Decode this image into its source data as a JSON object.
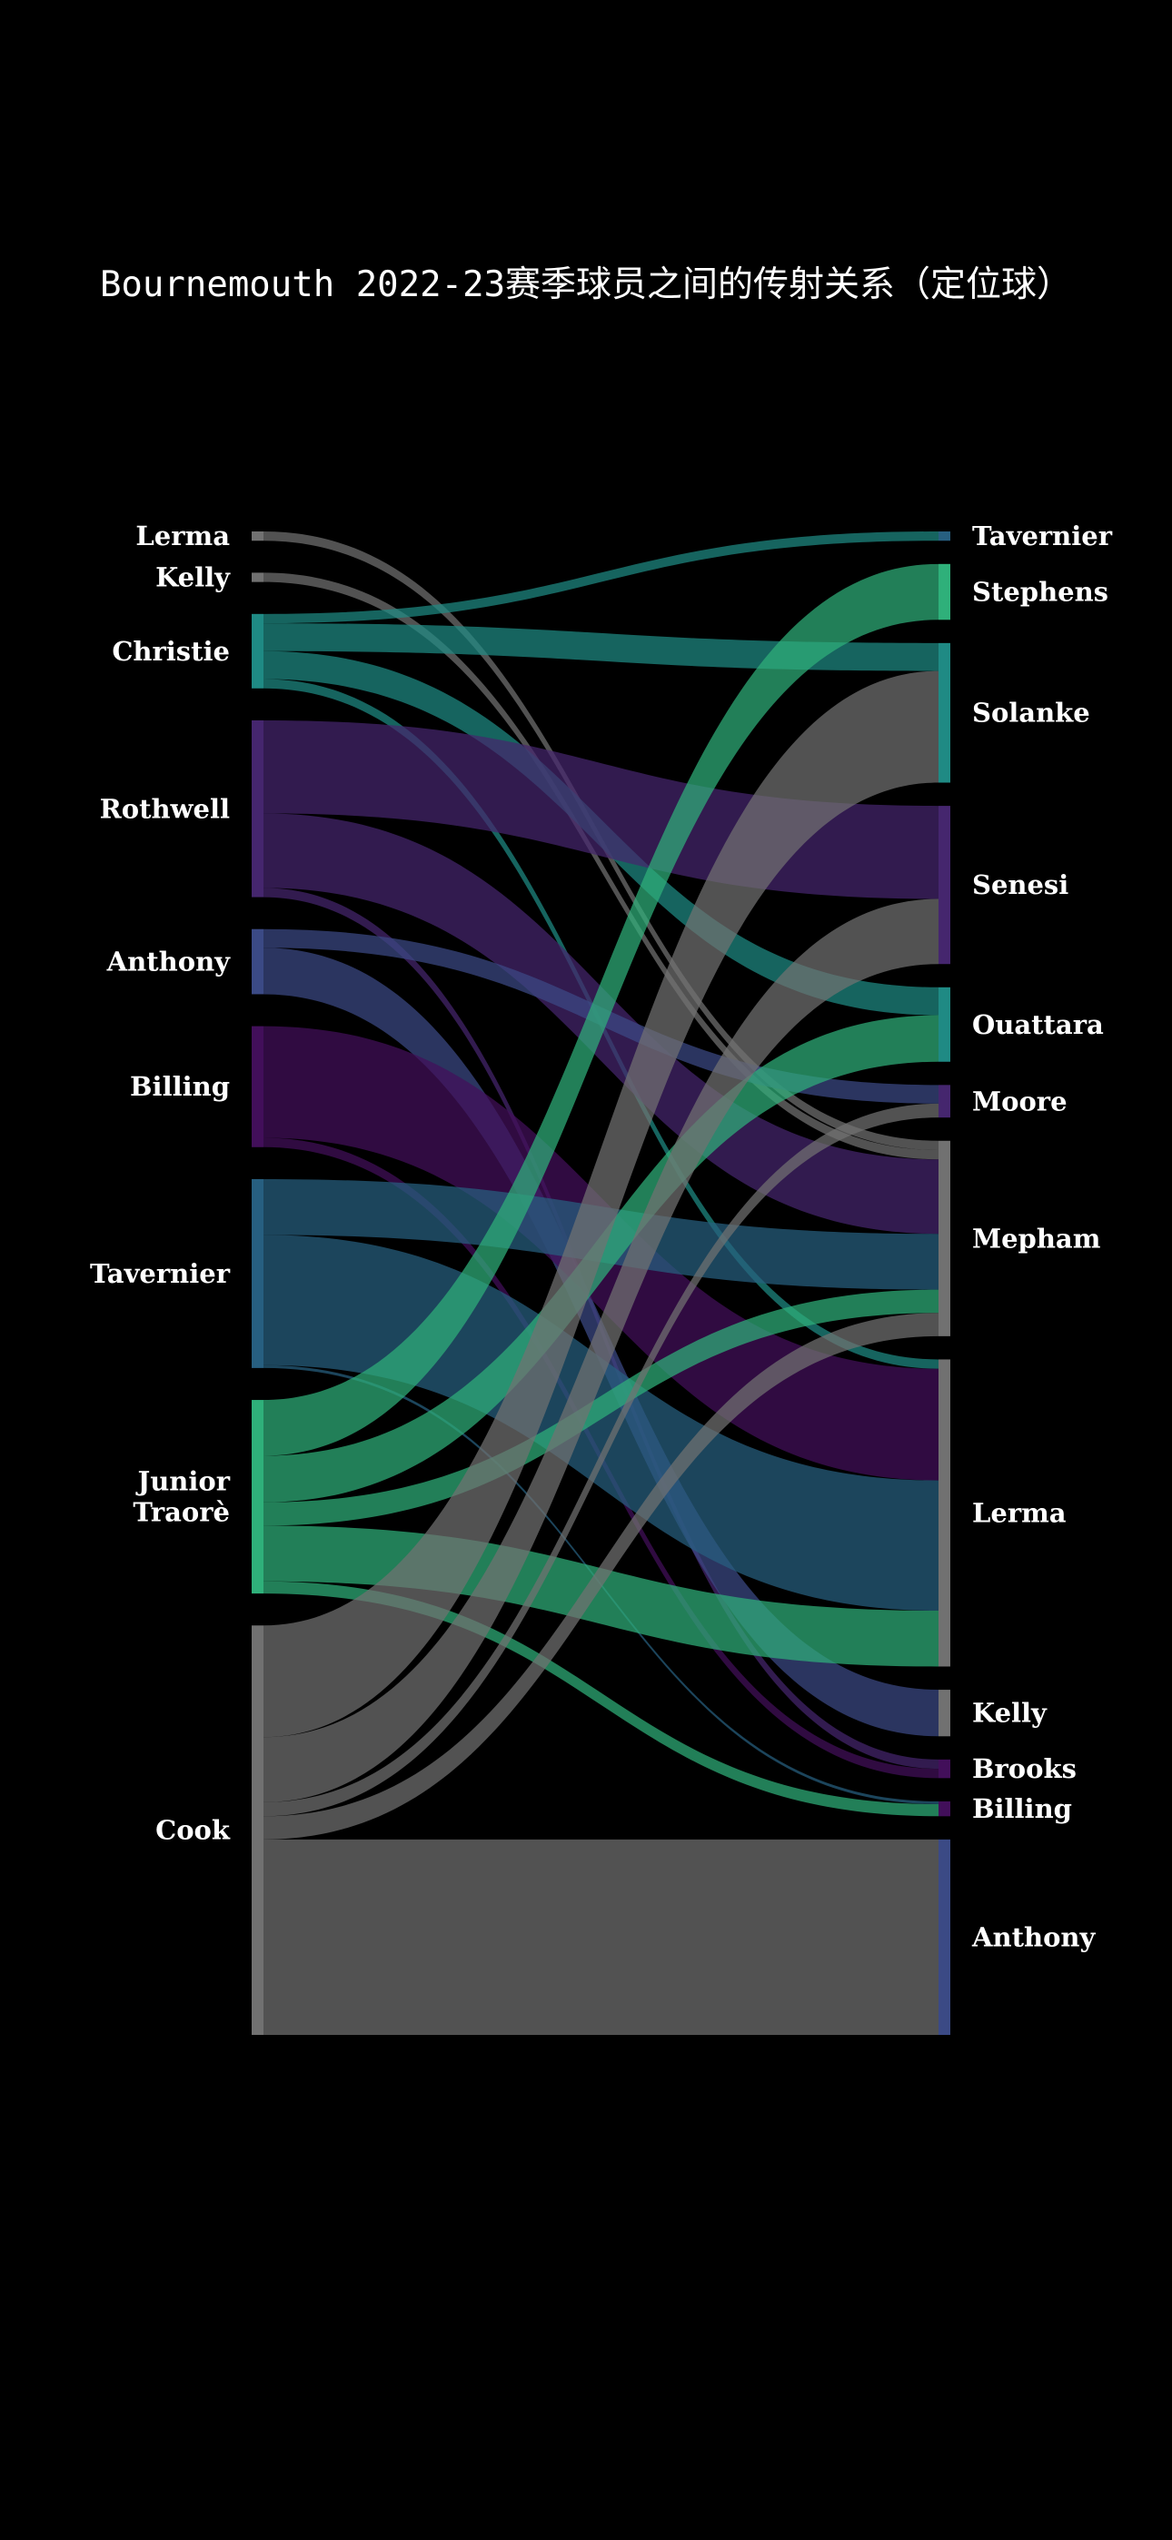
{
  "chart_data": {
    "type": "sankey",
    "title": "Bournemouth 2022-23赛季球员之间的传射关系（定位球）",
    "colors": {
      "Lerma": "#717171",
      "Kelly": "#717171",
      "Christie": "#1f8a84",
      "Rothwell": "#45266e",
      "Anthony": "#3b4a85",
      "Billing": "#420f5a",
      "Tavernier": "#275f80",
      "Junior Traorè": "#2fb07a",
      "Cook": "#717171",
      "Stephens": "#2fb07a",
      "Solanke": "#1f8a84",
      "Senesi": "#45266e",
      "Ouattara": "#1f8a84",
      "Moore": "#45266e",
      "Mepham": "#717171",
      "Brooks": "#420f5a"
    },
    "sources": [
      {
        "name": "Lerma",
        "label": [
          "Lerma"
        ]
      },
      {
        "name": "Kelly",
        "label": [
          "Kelly"
        ]
      },
      {
        "name": "Christie",
        "label": [
          "Christie"
        ]
      },
      {
        "name": "Rothwell",
        "label": [
          "Rothwell"
        ]
      },
      {
        "name": "Anthony",
        "label": [
          "Anthony"
        ]
      },
      {
        "name": "Billing",
        "label": [
          "Billing"
        ]
      },
      {
        "name": "Tavernier",
        "label": [
          "Tavernier"
        ]
      },
      {
        "name": "Junior Traorè",
        "label": [
          "Junior",
          "Traorè"
        ]
      },
      {
        "name": "Cook",
        "label": [
          "Cook"
        ]
      }
    ],
    "targets": [
      {
        "name": "Tavernier",
        "label": [
          "Tavernier"
        ]
      },
      {
        "name": "Stephens",
        "label": [
          "Stephens"
        ]
      },
      {
        "name": "Solanke",
        "label": [
          "Solanke"
        ]
      },
      {
        "name": "Senesi",
        "label": [
          "Senesi"
        ]
      },
      {
        "name": "Ouattara",
        "label": [
          "Ouattara"
        ]
      },
      {
        "name": "Moore",
        "label": [
          "Moore"
        ]
      },
      {
        "name": "Mepham",
        "label": [
          "Mepham"
        ]
      },
      {
        "name": "Lerma",
        "label": [
          "Lerma"
        ]
      },
      {
        "name": "Kelly",
        "label": [
          "Kelly"
        ]
      },
      {
        "name": "Brooks",
        "label": [
          "Brooks"
        ]
      },
      {
        "name": "Billing",
        "label": [
          "Billing"
        ]
      },
      {
        "name": "Anthony",
        "label": [
          "Anthony"
        ]
      }
    ],
    "links": [
      {
        "source": "Lerma",
        "target": "Mepham",
        "value": 1
      },
      {
        "source": "Kelly",
        "target": "Mepham",
        "value": 1
      },
      {
        "source": "Christie",
        "target": "Tavernier",
        "value": 1
      },
      {
        "source": "Christie",
        "target": "Solanke",
        "value": 3
      },
      {
        "source": "Christie",
        "target": "Ouattara",
        "value": 3
      },
      {
        "source": "Christie",
        "target": "Lerma",
        "value": 1
      },
      {
        "source": "Rothwell",
        "target": "Senesi",
        "value": 10
      },
      {
        "source": "Rothwell",
        "target": "Mepham",
        "value": 8
      },
      {
        "source": "Rothwell",
        "target": "Brooks",
        "value": 1
      },
      {
        "source": "Anthony",
        "target": "Moore",
        "value": 2
      },
      {
        "source": "Anthony",
        "target": "Kelly",
        "value": 5
      },
      {
        "source": "Billing",
        "target": "Lerma",
        "value": 12
      },
      {
        "source": "Billing",
        "target": "Brooks",
        "value": 1
      },
      {
        "source": "Tavernier",
        "target": "Mepham",
        "value": 6
      },
      {
        "source": "Tavernier",
        "target": "Lerma",
        "value": 14
      },
      {
        "source": "Tavernier",
        "target": "Billing",
        "value": 0.3
      },
      {
        "source": "Junior Traorè",
        "target": "Stephens",
        "value": 6
      },
      {
        "source": "Junior Traorè",
        "target": "Ouattara",
        "value": 5
      },
      {
        "source": "Junior Traorè",
        "target": "Mepham",
        "value": 2.5
      },
      {
        "source": "Junior Traorè",
        "target": "Lerma",
        "value": 6
      },
      {
        "source": "Junior Traorè",
        "target": "Billing",
        "value": 1.3
      },
      {
        "source": "Cook",
        "target": "Solanke",
        "value": 12
      },
      {
        "source": "Cook",
        "target": "Senesi",
        "value": 7
      },
      {
        "source": "Cook",
        "target": "Moore",
        "value": 1.5
      },
      {
        "source": "Cook",
        "target": "Mepham",
        "value": 2.5
      },
      {
        "source": "Cook",
        "target": "Anthony",
        "value": 21
      }
    ]
  }
}
